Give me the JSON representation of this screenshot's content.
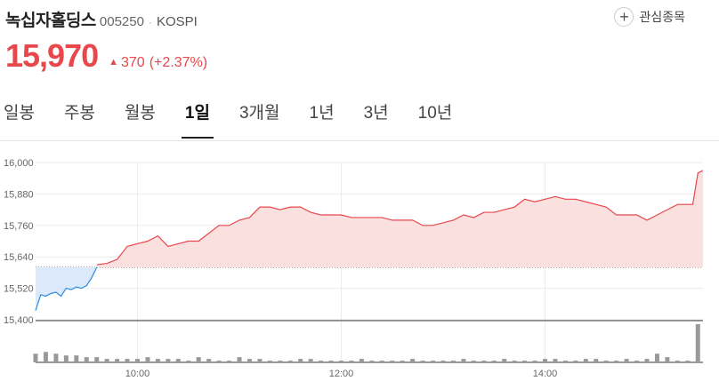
{
  "stock": {
    "name": "녹십자홀딩스",
    "code": "005250",
    "market": "KOSPI",
    "price": "15,970",
    "change": "370",
    "change_pct": "(+2.37%)",
    "watch_label": "관심종목"
  },
  "tabs": [
    {
      "label": "일봉",
      "active": false
    },
    {
      "label": "주봉",
      "active": false
    },
    {
      "label": "월봉",
      "active": false
    },
    {
      "label": "1일",
      "active": true
    },
    {
      "label": "3개월",
      "active": false
    },
    {
      "label": "1년",
      "active": false
    },
    {
      "label": "3년",
      "active": false
    },
    {
      "label": "10년",
      "active": false
    }
  ],
  "colors": {
    "up": "#e8474c",
    "down": "#2d8be0",
    "volume": "#999999"
  },
  "chart_data": {
    "type": "area",
    "y_ticks": [
      "16,000",
      "15,880",
      "15,760",
      "15,640",
      "15,520",
      "15,400"
    ],
    "x_ticks": [
      "10:00",
      "12:00",
      "14:00"
    ],
    "ylim": [
      15400,
      16000
    ],
    "previous_close": 15600,
    "series": [
      {
        "color": "#2d8be0",
        "x": [
          9.0,
          9.05,
          9.1,
          9.15,
          9.2,
          9.25,
          9.3,
          9.35,
          9.4,
          9.45,
          9.5,
          9.55,
          9.6
        ],
        "y": [
          15435,
          15495,
          15490,
          15500,
          15505,
          15490,
          15520,
          15515,
          15525,
          15520,
          15530,
          15560,
          15600
        ]
      },
      {
        "color": "#e8474c",
        "x": [
          9.6,
          9.7,
          9.8,
          9.9,
          10.0,
          10.1,
          10.2,
          10.3,
          10.4,
          10.5,
          10.6,
          10.7,
          10.8,
          10.9,
          11.0,
          11.1,
          11.2,
          11.3,
          11.4,
          11.5,
          11.6,
          11.7,
          11.8,
          11.9,
          12.0,
          12.1,
          12.2,
          12.3,
          12.4,
          12.5,
          12.6,
          12.7,
          12.8,
          12.9,
          13.0,
          13.1,
          13.2,
          13.3,
          13.4,
          13.5,
          13.6,
          13.7,
          13.8,
          13.9,
          14.0,
          14.1,
          14.2,
          14.3,
          14.4,
          14.5,
          14.6,
          14.7,
          14.8,
          14.9,
          15.0,
          15.1,
          15.2,
          15.3,
          15.45,
          15.5,
          15.55
        ],
        "y": [
          15610,
          15615,
          15630,
          15680,
          15690,
          15700,
          15720,
          15680,
          15690,
          15700,
          15700,
          15730,
          15760,
          15760,
          15780,
          15790,
          15830,
          15830,
          15820,
          15830,
          15830,
          15810,
          15800,
          15800,
          15800,
          15790,
          15790,
          15790,
          15790,
          15780,
          15780,
          15780,
          15760,
          15760,
          15770,
          15780,
          15800,
          15790,
          15810,
          15810,
          15820,
          15830,
          15860,
          15850,
          15860,
          15870,
          15860,
          15860,
          15850,
          15840,
          15830,
          15800,
          15800,
          15800,
          15780,
          15800,
          15820,
          15840,
          15840,
          15960,
          15970
        ]
      }
    ],
    "volume": {
      "x": [
        9.0,
        9.1,
        9.2,
        9.3,
        9.4,
        9.5,
        9.6,
        9.7,
        9.8,
        9.9,
        10.0,
        10.1,
        10.2,
        10.3,
        10.4,
        10.5,
        10.6,
        10.7,
        10.8,
        10.9,
        11.0,
        11.1,
        11.2,
        11.3,
        11.4,
        11.5,
        11.6,
        11.7,
        11.8,
        11.9,
        12.0,
        12.1,
        12.2,
        12.3,
        12.4,
        12.5,
        12.6,
        12.7,
        12.8,
        12.9,
        13.0,
        13.1,
        13.2,
        13.3,
        13.4,
        13.5,
        13.6,
        13.7,
        13.8,
        13.9,
        14.0,
        14.1,
        14.2,
        14.3,
        14.4,
        14.5,
        14.6,
        14.7,
        14.8,
        14.9,
        15.0,
        15.1,
        15.2,
        15.3,
        15.4,
        15.5
      ],
      "values": [
        5,
        6,
        5,
        4,
        4,
        3,
        3,
        2,
        2,
        2,
        2,
        3,
        2,
        2,
        2,
        1,
        3,
        2,
        1,
        1,
        3,
        2,
        2,
        1,
        1,
        1,
        2,
        2,
        1,
        1,
        1,
        1,
        2,
        1,
        1,
        1,
        1,
        2,
        1,
        1,
        1,
        1,
        2,
        1,
        1,
        1,
        2,
        1,
        1,
        1,
        2,
        2,
        1,
        1,
        2,
        2,
        1,
        1,
        2,
        1,
        2,
        5,
        3,
        1,
        1,
        22
      ]
    }
  }
}
